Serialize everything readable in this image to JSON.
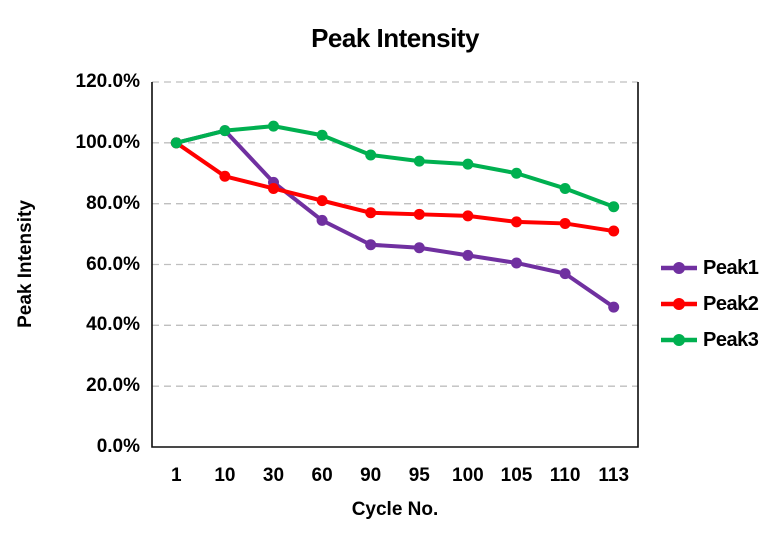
{
  "colors": {
    "background": "#FFFFFF",
    "text": "#000000",
    "axis": "#0D0D0D",
    "gridline": "#BFBFBF"
  },
  "chart_data": {
    "type": "line",
    "title": "Peak Intensity",
    "xlabel": "Cycle No.",
    "ylabel": "Peak Intensity",
    "categories": [
      "1",
      "10",
      "30",
      "60",
      "90",
      "95",
      "100",
      "105",
      "110",
      "113"
    ],
    "ylim": [
      0,
      120
    ],
    "y_ticks": [
      {
        "value": 0,
        "label": "0.0%"
      },
      {
        "value": 20,
        "label": "20.0%"
      },
      {
        "value": 40,
        "label": "40.0%"
      },
      {
        "value": 60,
        "label": "60.0%"
      },
      {
        "value": 80,
        "label": "80.0%"
      },
      {
        "value": 100,
        "label": "100.0%"
      },
      {
        "value": 120,
        "label": "120.0%"
      }
    ],
    "grid": "horizontal-dashed",
    "legend_position": "right",
    "series": [
      {
        "name": "Peak1",
        "color": "#7030A0",
        "values": [
          100,
          104,
          87,
          74.5,
          66.5,
          65.5,
          63,
          60.5,
          57,
          46
        ]
      },
      {
        "name": "Peak2",
        "color": "#FF0000",
        "values": [
          100,
          89,
          85,
          81,
          77,
          76.5,
          76,
          74,
          73.5,
          71
        ]
      },
      {
        "name": "Peak3",
        "color": "#00B050",
        "values": [
          100,
          104,
          105.5,
          102.5,
          96,
          94,
          93,
          90,
          85,
          79
        ]
      }
    ]
  }
}
